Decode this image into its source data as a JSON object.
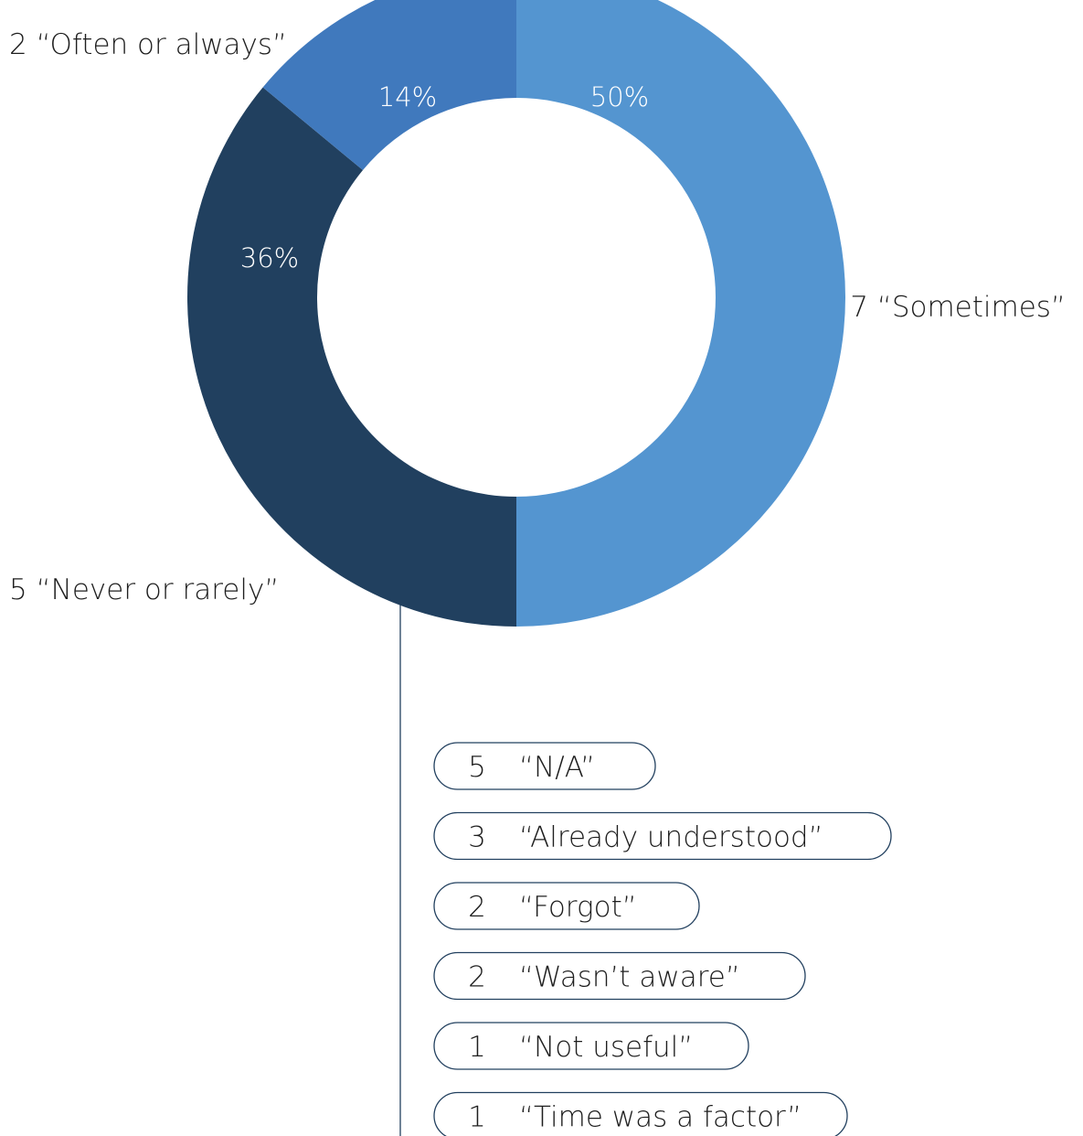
{
  "chart_data": [
    {
      "type": "pie",
      "style": "donut",
      "categories": [
        "“Sometimes”",
        "“Never or rarely”",
        "“Often or always”"
      ],
      "counts": [
        7,
        5,
        2
      ],
      "values": [
        50,
        36,
        14
      ],
      "value_labels": [
        "50%",
        "36%",
        "14%"
      ],
      "outer_labels": [
        "7 “Sometimes”",
        "5 “Never or rarely”",
        "2 “Often or always”"
      ],
      "colors": [
        "#5495d0",
        "#21405f",
        "#4079bd"
      ]
    },
    {
      "type": "table",
      "breakdown_of": "“Never or rarely”",
      "rows": [
        {
          "count": "5",
          "reason": "“N/A”"
        },
        {
          "count": "3",
          "reason": "“Already understood”"
        },
        {
          "count": "2",
          "reason": "“Forgot”"
        },
        {
          "count": "2",
          "reason": "“Wasn’t aware”"
        },
        {
          "count": "1",
          "reason": "“Not useful”"
        },
        {
          "count": "1",
          "reason": "“Time was a factor”"
        }
      ],
      "line_color": "#22405f"
    }
  ]
}
